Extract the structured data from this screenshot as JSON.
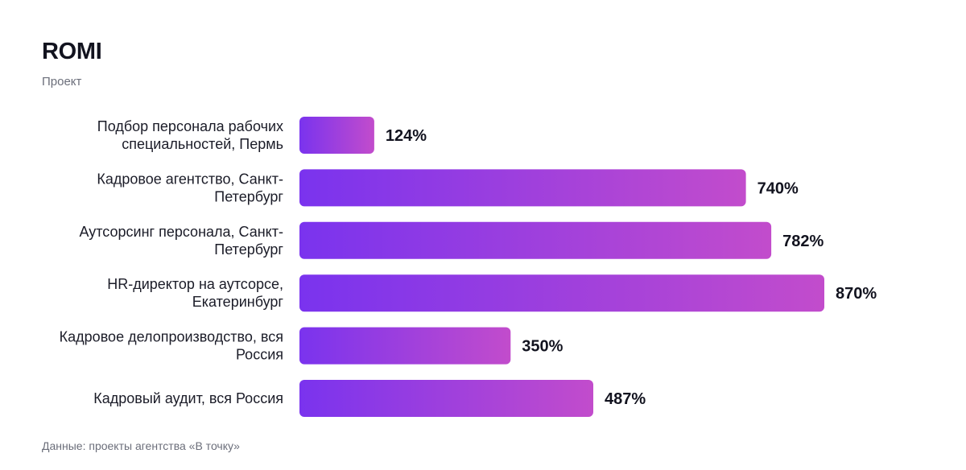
{
  "header": {
    "title": "ROMI",
    "subtitle": "Проект"
  },
  "footer": {
    "source": "Данные: проекты агентства «В точку»"
  },
  "colors": {
    "bar_start": "#7a33ee",
    "bar_end": "#c24ccc"
  },
  "chart_data": {
    "type": "bar",
    "orientation": "horizontal",
    "title": "ROMI",
    "subtitle": "Проект",
    "categories": [
      [
        "Подбор персонала рабочих",
        "специальностей, Пермь"
      ],
      [
        "Кадровое агентство, Санкт-",
        "Петербург"
      ],
      [
        "Аутсорсинг персонала, Санкт-",
        "Петербург"
      ],
      [
        "HR-директор на аутсорсе,",
        "Екатеринбург"
      ],
      [
        "Кадровое делопроизводство, вся",
        "Россия"
      ],
      [
        "Кадровый аудит, вся Россия"
      ]
    ],
    "values": [
      124,
      740,
      782,
      870,
      350,
      487
    ],
    "value_labels": [
      "124%",
      "740%",
      "782%",
      "870%",
      "350%",
      "487%"
    ],
    "unit": "%",
    "xlim": [
      0,
      870
    ],
    "grid": false,
    "legend": "none"
  }
}
